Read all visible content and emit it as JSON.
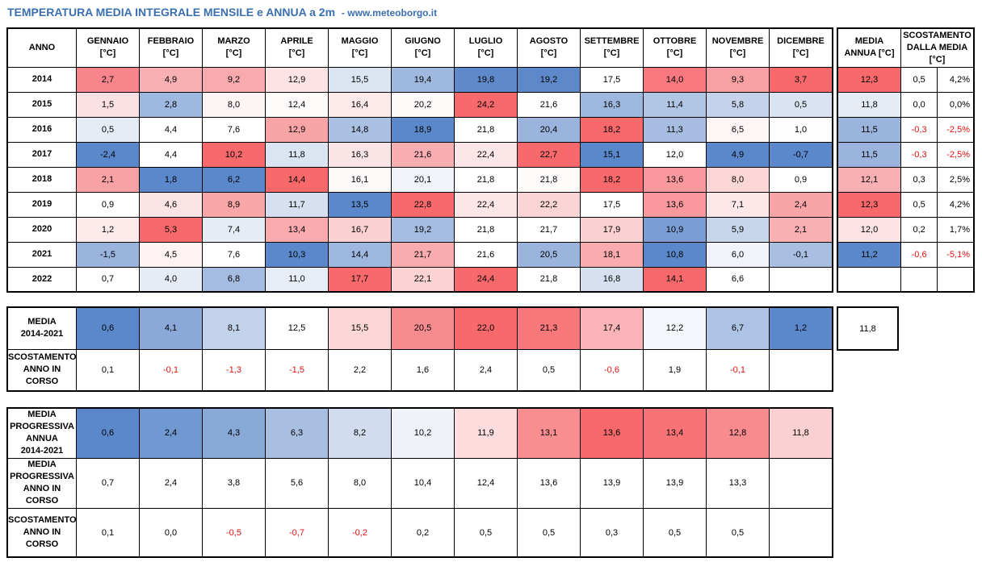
{
  "title": {
    "main": "TEMPERATURA MEDIA INTEGRALE MENSILE e ANNUA a 2m",
    "site": "- www.meteoborgo.it"
  },
  "monthly_table": {
    "headers": [
      [
        "ANNO"
      ],
      [
        "GENNAIO",
        "[°C]"
      ],
      [
        "FEBBRAIO",
        "[°C]"
      ],
      [
        "MARZO",
        "[°C]"
      ],
      [
        "APRILE",
        "[°C]"
      ],
      [
        "MAGGIO",
        "[°C]"
      ],
      [
        "GIUGNO",
        "[°C]"
      ],
      [
        "LUGLIO",
        "[°C]"
      ],
      [
        "AGOSTO",
        "[°C]"
      ],
      [
        "SETTEMBRE",
        "[°C]"
      ],
      [
        "OTTOBRE",
        "[°C]"
      ],
      [
        "NOVEMBRE",
        "[°C]"
      ],
      [
        "DICEMBRE",
        "[°C]"
      ]
    ],
    "rows": [
      {
        "year": "2014",
        "values": [
          "2,7",
          "4,9",
          "9,2",
          "12,9",
          "15,5",
          "19,4",
          "19,8",
          "19,2",
          "17,5",
          "14,0",
          "9,3",
          "3,7"
        ],
        "colors": [
          "#f7858b",
          "#f9b0b3",
          "#f9aaad",
          "#fde3e4",
          "#dbe4f1",
          "#9fb8df",
          "#5e8acb",
          "#5d89cb",
          "#ffffff",
          "#f7797f",
          "#f8a0a4",
          "#f8696b"
        ]
      },
      {
        "year": "2015",
        "values": [
          "1,5",
          "2,8",
          "8,0",
          "12,4",
          "16,4",
          "20,2",
          "24,2",
          "21,6",
          "16,3",
          "11,4",
          "5,8",
          "0,5"
        ],
        "colors": [
          "#fce1e2",
          "#9fb8df",
          "#fdf5f5",
          "#fefbfb",
          "#fde9ea",
          "#fefafa",
          "#f8696b",
          "#fefefe",
          "#9eb7de",
          "#b1c6e5",
          "#c4d3eb",
          "#dae3f1"
        ]
      },
      {
        "year": "2016",
        "values": [
          "0,5",
          "4,4",
          "7,6",
          "12,9",
          "14,8",
          "18,9",
          "21,8",
          "20,4",
          "18,2",
          "11,3",
          "6,5",
          "1,0"
        ],
        "colors": [
          "#e5ecf5",
          "#ffffff",
          "#ffffff",
          "#f9a5a8",
          "#abc1e3",
          "#5a88cb",
          "#ffffff",
          "#9ab4dd",
          "#f8696b",
          "#a6bde1",
          "#fef6f6",
          "#fefdfd"
        ]
      },
      {
        "year": "2017",
        "values": [
          "-2,4",
          "4,4",
          "10,2",
          "11,8",
          "16,3",
          "21,6",
          "22,4",
          "22,7",
          "15,1",
          "12,0",
          "4,9",
          "-0,7"
        ],
        "colors": [
          "#5a88cb",
          "#ffffff",
          "#f8696b",
          "#dbe4f1",
          "#fbe4e5",
          "#f9aeb1",
          "#fce6e7",
          "#f8696b",
          "#5a88cb",
          "#ffffff",
          "#5a88cb",
          "#5a88cb"
        ]
      },
      {
        "year": "2018",
        "values": [
          "2,1",
          "1,8",
          "6,2",
          "14,4",
          "16,1",
          "20,1",
          "21,8",
          "21,8",
          "18,2",
          "13,6",
          "8,0",
          "0,9"
        ],
        "colors": [
          "#f9a2a5",
          "#5a88cb",
          "#5a88cb",
          "#f8696b",
          "#fef9f9",
          "#f0f4fa",
          "#ffffff",
          "#fefbfb",
          "#f8696b",
          "#f9999d",
          "#fcd5d6",
          "#ffffff"
        ]
      },
      {
        "year": "2019",
        "values": [
          "0,9",
          "4,6",
          "8,9",
          "11,7",
          "13,5",
          "22,8",
          "22,4",
          "22,2",
          "17,5",
          "13,6",
          "7,1",
          "2,4"
        ],
        "colors": [
          "#ffffff",
          "#fce3e4",
          "#f9a6a9",
          "#d6e0f0",
          "#5a88cb",
          "#f8696b",
          "#fce6e7",
          "#fbd4d5",
          "#ffffff",
          "#f9999d",
          "#fde7e8",
          "#f9a4a7"
        ]
      },
      {
        "year": "2020",
        "values": [
          "1,2",
          "5,3",
          "7,4",
          "13,4",
          "16,7",
          "19,2",
          "21,8",
          "21,7",
          "17,9",
          "10,9",
          "5,9",
          "2,1"
        ],
        "colors": [
          "#fdeaeb",
          "#f8696b",
          "#e5ecf5",
          "#f9abae",
          "#fbd0d2",
          "#a5bce1",
          "#ffffff",
          "#ffffff",
          "#fbd0d2",
          "#7a9ed4",
          "#c8d6ec",
          "#f9b0b3"
        ]
      },
      {
        "year": "2021",
        "values": [
          "-1,5",
          "4,5",
          "7,6",
          "10,3",
          "14,4",
          "21,7",
          "21,6",
          "20,5",
          "18,1",
          "10,8",
          "6,0",
          "-0,1"
        ],
        "colors": [
          "#9ab4dd",
          "#fef3f3",
          "#ffffff",
          "#5a88cb",
          "#9eb7de",
          "#f9acaf",
          "#ffffff",
          "#9ab4dd",
          "#f9abae",
          "#5a88cb",
          "#f0f4fa",
          "#a8bfe2"
        ]
      },
      {
        "year": "2022",
        "values": [
          "0,7",
          "4,0",
          "6,8",
          "11,0",
          "17,7",
          "22,1",
          "24,4",
          "21,8",
          "16,8",
          "14,1",
          "6,6",
          ""
        ],
        "colors": [
          "#ffffff",
          "#e5ecf5",
          "#a5bce1",
          "#e6edf6",
          "#f8696b",
          "#fbd3d4",
          "#f8696b",
          "#ffffff",
          "#d6e0f0",
          "#f8696b",
          "#ffffff",
          "#ffffff"
        ]
      }
    ]
  },
  "annual_table": {
    "headers": [
      [
        "MEDIA",
        "ANNUA [°C]"
      ],
      [
        "SCOSTAMENTO",
        "DALLA MEDIA",
        "[°C]"
      ]
    ],
    "rows": [
      {
        "media": "12,3",
        "color": "#f8696b",
        "scost": "0,5",
        "pct": "4,2%",
        "neg": false
      },
      {
        "media": "11,8",
        "color": "#e5ecf5",
        "scost": "0,0",
        "pct": "0,0%",
        "neg": false
      },
      {
        "media": "11,5",
        "color": "#9ab4dd",
        "scost": "-0,3",
        "pct": "-2,5%",
        "neg": true
      },
      {
        "media": "11,5",
        "color": "#9ab4dd",
        "scost": "-0,3",
        "pct": "-2,5%",
        "neg": true
      },
      {
        "media": "12,1",
        "color": "#f9b0b3",
        "scost": "0,3",
        "pct": "2,5%",
        "neg": false
      },
      {
        "media": "12,3",
        "color": "#f8696b",
        "scost": "0,5",
        "pct": "4,2%",
        "neg": false
      },
      {
        "media": "12,0",
        "color": "#fde3e4",
        "scost": "0,2",
        "pct": "1,7%",
        "neg": false
      },
      {
        "media": "11,2",
        "color": "#5a88cb",
        "scost": "-0,6",
        "pct": "-5,1%",
        "neg": true
      },
      {
        "media": "",
        "color": "#ffffff",
        "scost": "",
        "pct": "",
        "neg": false
      }
    ]
  },
  "mean_table": {
    "media_label": [
      "MEDIA",
      "2014-2021"
    ],
    "media_values": [
      "0,6",
      "4,1",
      "8,1",
      "12,5",
      "15,5",
      "20,5",
      "22,0",
      "21,3",
      "17,4",
      "12,2",
      "6,7",
      "1,2"
    ],
    "media_colors": [
      "#5a88cb",
      "#8aa9d9",
      "#c3d2eb",
      "#ffffff",
      "#fbd6d7",
      "#f78c90",
      "#f8696b",
      "#f8777a",
      "#fab3b6",
      "#f3f6fb",
      "#adc3e3",
      "#5a88cb"
    ],
    "scost_label": [
      "SCOSTAMENTO",
      "ANNO IN",
      "CORSO"
    ],
    "scost_values": [
      "0,1",
      "-0,1",
      "-1,3",
      "-1,5",
      "2,2",
      "1,6",
      "2,4",
      "0,5",
      "-0,6",
      "1,9",
      "-0,1",
      ""
    ],
    "scost_neg": [
      false,
      true,
      true,
      true,
      false,
      false,
      false,
      false,
      true,
      false,
      true,
      false
    ],
    "annual_mean": "11,8"
  },
  "progressive_table": {
    "prog_label": [
      "MEDIA",
      "PROGRESSIVA",
      "ANNUA",
      "2014-2021"
    ],
    "prog_values": [
      "0,6",
      "2,4",
      "4,3",
      "6,3",
      "8,2",
      "10,2",
      "11,9",
      "13,1",
      "13,6",
      "13,4",
      "12,8",
      "11,8"
    ],
    "prog_colors": [
      "#5a88cb",
      "#7098d1",
      "#88a8d8",
      "#a9bfe2",
      "#d1ddef",
      "#eff3f9",
      "#fcdcdd",
      "#f98e91",
      "#f8696b",
      "#f87376",
      "#f98a8d",
      "#fbd0d2"
    ],
    "curr_label": [
      "MEDIA",
      "PROGRESSIVA",
      "ANNO IN",
      "CORSO"
    ],
    "curr_values": [
      "0,7",
      "2,4",
      "3,8",
      "5,6",
      "8,0",
      "10,4",
      "12,4",
      "13,6",
      "13,9",
      "13,9",
      "13,3",
      ""
    ],
    "scost_label": [
      "SCOSTAMENTO",
      "ANNO IN",
      "CORSO"
    ],
    "scost_values": [
      "0,1",
      "0,0",
      "-0,5",
      "-0,7",
      "-0,2",
      "0,2",
      "0,5",
      "0,5",
      "0,3",
      "0,5",
      "0,5",
      ""
    ],
    "scost_neg": [
      false,
      false,
      true,
      true,
      true,
      false,
      false,
      false,
      false,
      false,
      false,
      false
    ]
  }
}
